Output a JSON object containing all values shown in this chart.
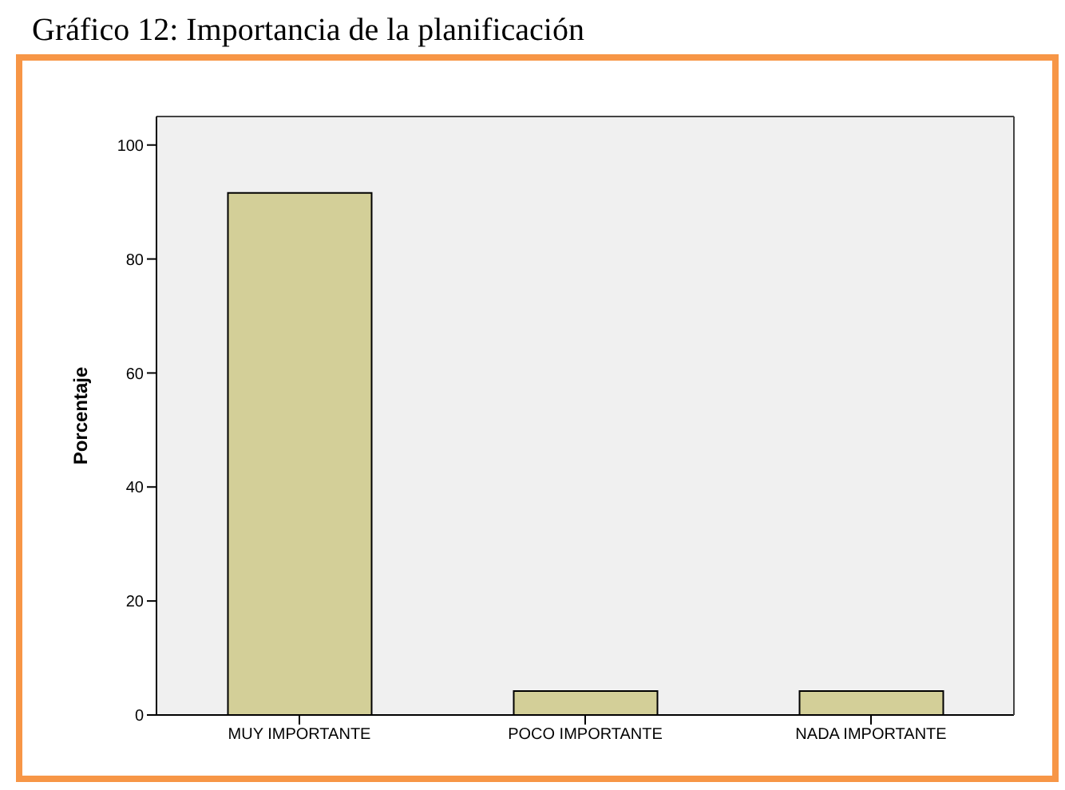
{
  "chart_data": {
    "type": "bar",
    "title": "Gráfico 12: Importancia de la planificación",
    "ylabel": "Porcentaje",
    "categories": [
      "MUY IMPORTANTE",
      "POCO IMPORTANTE",
      "NADA IMPORTANTE"
    ],
    "values": [
      91.6,
      4.2,
      4.2
    ],
    "color": "#d3cf98",
    "ylim": [
      0,
      105
    ],
    "yticks": [
      0,
      20,
      40,
      60,
      80,
      100
    ]
  }
}
